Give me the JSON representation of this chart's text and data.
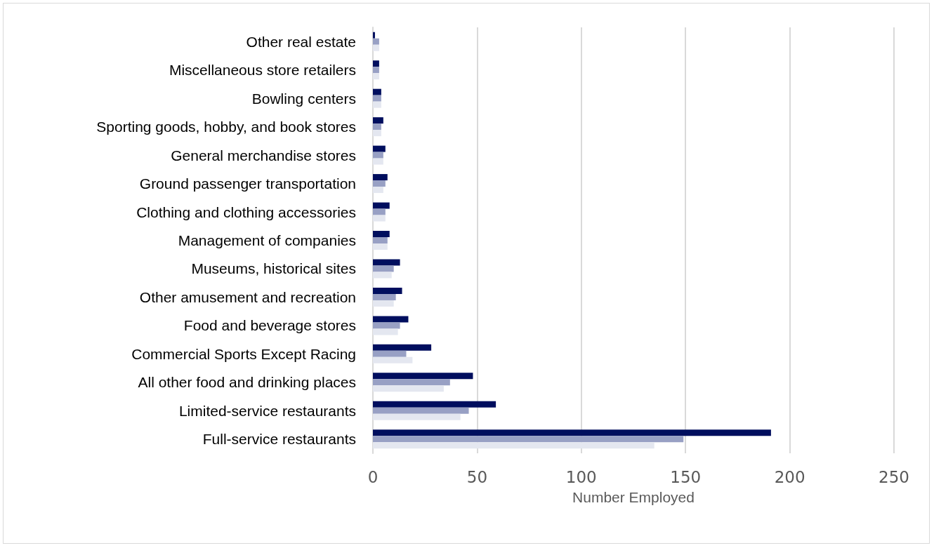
{
  "chart_data": {
    "type": "bar",
    "orientation": "horizontal",
    "xlabel": "Number Employed",
    "categories": [
      "Other real estate",
      "Miscellaneous store retailers",
      "Bowling centers",
      "Sporting goods, hobby, and book stores",
      "General merchandise stores",
      "Ground passenger transportation",
      "Clothing and clothing accessories",
      "Management of companies",
      "Museums, historical sites",
      "Other amusement and recreation",
      "Food and beverage stores",
      "Commercial Sports Except Racing",
      "All other food and drinking places",
      "Limited-service restaurants",
      "Full-service restaurants"
    ],
    "series": [
      {
        "color": "#000e5e",
        "values": [
          1,
          3,
          4,
          5,
          6,
          7,
          8,
          8,
          13,
          14,
          17,
          28,
          48,
          59,
          191
        ]
      },
      {
        "color": "#98a0c4",
        "values": [
          3,
          3,
          4,
          4,
          5,
          6,
          6,
          7,
          10,
          11,
          13,
          16,
          37,
          46,
          149
        ]
      },
      {
        "color": "#e4e7f0",
        "values": [
          3,
          3,
          4,
          4,
          5,
          5,
          6,
          7,
          9,
          10,
          12,
          19,
          34,
          42,
          135
        ]
      }
    ],
    "xlim": [
      0,
      250
    ],
    "xticks": [
      0,
      50,
      100,
      150,
      200,
      250
    ],
    "grid": "x"
  }
}
